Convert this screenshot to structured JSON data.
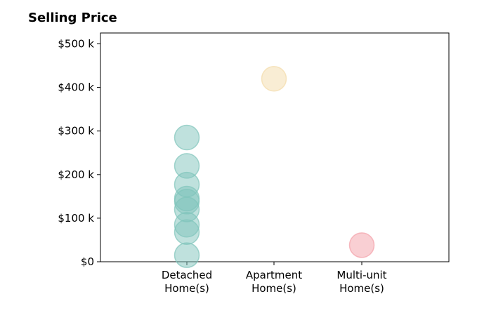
{
  "chart_data": {
    "type": "scatter",
    "title": "Selling Price",
    "xlabel": "",
    "ylabel": "",
    "categories": [
      "Detached\nHome(s)",
      "Apartment\nHome(s)",
      "Multi-unit\nHome(s)"
    ],
    "ylim": [
      0,
      525000
    ],
    "yticks": [
      0,
      100000,
      200000,
      300000,
      400000,
      500000
    ],
    "ytick_labels": [
      "$0",
      "$100 k",
      "$200 k",
      "$300 k",
      "$400 k",
      "$500 k"
    ],
    "grid": false,
    "legend": "none",
    "series": [
      {
        "category": "Detached\nHome(s)",
        "color": "#7fc4bb",
        "values": [
          285000,
          220000,
          177000,
          145000,
          138000,
          120000,
          85000,
          68000,
          15000
        ]
      },
      {
        "category": "Apartment\nHome(s)",
        "color": "#f3dcaa",
        "values": [
          420000
        ]
      },
      {
        "category": "Multi-unit\nHome(s)",
        "color": "#f3a0a8",
        "values": [
          38000
        ]
      }
    ]
  }
}
